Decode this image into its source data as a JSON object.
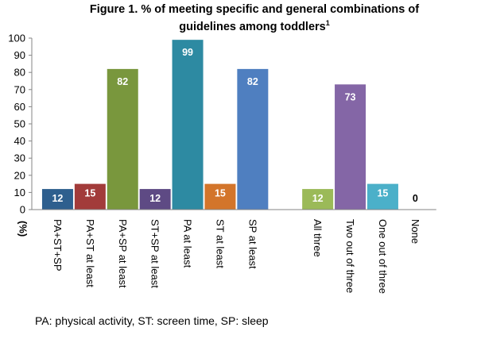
{
  "title": {
    "line1": "Figure 1. % of meeting specific and general combinations of",
    "line2": "guidelines among toddlers",
    "superscript": "1"
  },
  "footnote": "PA: physical activity, ST: screen time, SP: sleep",
  "chart_data": {
    "type": "bar",
    "title": "Figure 1. % of meeting specific and general combinations of guidelines among toddlers1",
    "ylabel": "(%)",
    "xlabel": "",
    "ylim": [
      0,
      100
    ],
    "yticks": [
      0,
      10,
      20,
      30,
      40,
      50,
      60,
      70,
      80,
      90,
      100
    ],
    "grid": false,
    "legend": "none",
    "groups": [
      {
        "categories": [
          "PA+ST+SP",
          "PA+ST at least",
          "PA+SP at least",
          "ST+SP at least",
          "PA at least",
          "ST at least",
          "SP at least"
        ],
        "values": [
          12,
          15,
          82,
          12,
          99,
          15,
          82
        ],
        "colors": [
          "#2e5f8e",
          "#a23b3a",
          "#79973d",
          "#5e4a84",
          "#2d8aa2",
          "#d3752b",
          "#4f7fc0"
        ]
      },
      {
        "categories": [
          "All three",
          "Two out of three",
          "One out of three",
          "None"
        ],
        "values": [
          12,
          73,
          15,
          0
        ],
        "colors": [
          "#9bba58",
          "#8466a6",
          "#4bb0c9",
          "#f09a46"
        ]
      }
    ]
  }
}
